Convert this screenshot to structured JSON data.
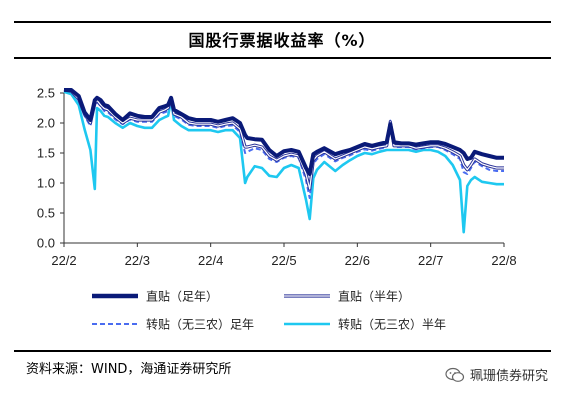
{
  "title": "国股行票据收益率（%）",
  "source": "资料来源：WIND，海通证券研究所",
  "watermark": {
    "text": "珮珊债券研究",
    "icon": "wechat-icon"
  },
  "chart_data": {
    "type": "line",
    "title": "国股行票据收益率（%）",
    "xlabel": "",
    "ylabel": "",
    "ylim": [
      0.0,
      2.5
    ],
    "yticks": [
      "0.0",
      "0.5",
      "1.0",
      "1.5",
      "2.0",
      "2.5"
    ],
    "xticks": [
      "22/2",
      "22/3",
      "22/4",
      "22/5",
      "22/6",
      "22/7",
      "22/8"
    ],
    "xtick_pos": [
      0,
      1,
      2,
      3,
      4,
      5,
      6
    ],
    "grid": false,
    "legend": "bottom",
    "x": [
      0.0,
      0.1,
      0.2,
      0.28,
      0.36,
      0.42,
      0.45,
      0.5,
      0.55,
      0.6,
      0.7,
      0.8,
      0.9,
      1.0,
      1.1,
      1.2,
      1.3,
      1.38,
      1.42,
      1.46,
      1.5,
      1.6,
      1.7,
      1.8,
      1.9,
      2.0,
      2.1,
      2.2,
      2.3,
      2.4,
      2.47,
      2.5,
      2.6,
      2.7,
      2.8,
      2.9,
      3.0,
      3.1,
      3.2,
      3.3,
      3.35,
      3.4,
      3.45,
      3.55,
      3.7,
      3.8,
      3.9,
      4.0,
      4.1,
      4.2,
      4.3,
      4.4,
      4.45,
      4.5,
      4.6,
      4.7,
      4.8,
      4.9,
      5.0,
      5.1,
      5.2,
      5.3,
      5.4,
      5.45,
      5.5,
      5.55,
      5.6,
      5.7,
      5.8,
      5.9,
      6.0
    ],
    "series": [
      {
        "name": "直贴（足年）",
        "color": "#0a1a78",
        "width": 4,
        "dash": "",
        "values": [
          2.55,
          2.55,
          2.45,
          2.18,
          2.05,
          2.38,
          2.42,
          2.38,
          2.3,
          2.28,
          2.15,
          2.05,
          2.16,
          2.12,
          2.1,
          2.1,
          2.25,
          2.28,
          2.3,
          2.42,
          2.22,
          2.15,
          2.08,
          2.05,
          2.05,
          2.05,
          2.02,
          2.05,
          2.08,
          2.0,
          1.8,
          1.75,
          1.73,
          1.72,
          1.55,
          1.45,
          1.53,
          1.55,
          1.52,
          1.25,
          1.15,
          1.48,
          1.52,
          1.58,
          1.48,
          1.52,
          1.55,
          1.6,
          1.65,
          1.62,
          1.65,
          1.68,
          1.98,
          1.68,
          1.66,
          1.66,
          1.64,
          1.66,
          1.68,
          1.68,
          1.65,
          1.6,
          1.55,
          1.5,
          1.4,
          1.42,
          1.52,
          1.48,
          1.45,
          1.42,
          1.42
        ]
      },
      {
        "name": "直贴（半年）",
        "color": "#2b3399",
        "width": 1.4,
        "dash": "",
        "double": true,
        "values": [
          2.55,
          2.53,
          2.4,
          2.15,
          2.0,
          2.32,
          2.38,
          2.3,
          2.24,
          2.22,
          2.1,
          2.0,
          2.08,
          2.05,
          2.05,
          2.05,
          2.18,
          2.22,
          2.25,
          2.4,
          2.15,
          2.1,
          2.0,
          1.98,
          1.98,
          1.98,
          1.95,
          1.98,
          2.0,
          1.9,
          1.6,
          1.6,
          1.63,
          1.6,
          1.45,
          1.38,
          1.45,
          1.48,
          1.45,
          1.15,
          0.9,
          1.38,
          1.45,
          1.52,
          1.4,
          1.45,
          1.5,
          1.55,
          1.6,
          1.57,
          1.6,
          1.62,
          2.02,
          1.62,
          1.62,
          1.62,
          1.58,
          1.6,
          1.62,
          1.62,
          1.58,
          1.52,
          1.45,
          1.3,
          1.22,
          1.3,
          1.4,
          1.32,
          1.28,
          1.25,
          1.25
        ]
      },
      {
        "name": "转贴（无三农）足年",
        "color": "#4a6cf0",
        "width": 2,
        "dash": "5,3",
        "values": [
          2.55,
          2.52,
          2.38,
          2.12,
          1.95,
          2.3,
          2.35,
          2.28,
          2.2,
          2.18,
          2.06,
          1.98,
          2.06,
          2.02,
          2.02,
          2.02,
          2.15,
          2.18,
          2.2,
          2.36,
          2.12,
          2.06,
          1.97,
          1.95,
          1.95,
          1.95,
          1.92,
          1.95,
          1.96,
          1.85,
          1.5,
          1.52,
          1.58,
          1.55,
          1.4,
          1.35,
          1.42,
          1.45,
          1.42,
          1.05,
          0.75,
          1.32,
          1.4,
          1.48,
          1.36,
          1.42,
          1.46,
          1.52,
          1.56,
          1.54,
          1.57,
          1.6,
          2.04,
          1.6,
          1.6,
          1.6,
          1.56,
          1.58,
          1.6,
          1.6,
          1.55,
          1.48,
          1.4,
          1.18,
          1.15,
          1.25,
          1.36,
          1.28,
          1.22,
          1.2,
          1.2
        ]
      },
      {
        "name": "转贴（无三农）半年",
        "color": "#1ec8f0",
        "width": 2.6,
        "dash": "",
        "values": [
          2.52,
          2.48,
          2.3,
          1.9,
          1.55,
          0.9,
          2.25,
          2.2,
          2.12,
          2.1,
          2.0,
          1.92,
          2.0,
          1.95,
          1.92,
          1.92,
          2.05,
          2.1,
          2.12,
          2.38,
          2.05,
          1.95,
          1.88,
          1.88,
          1.88,
          1.88,
          1.85,
          1.88,
          1.88,
          1.75,
          1.0,
          1.1,
          1.28,
          1.25,
          1.12,
          1.1,
          1.25,
          1.3,
          1.25,
          0.72,
          0.4,
          1.08,
          1.22,
          1.35,
          1.2,
          1.3,
          1.38,
          1.45,
          1.5,
          1.48,
          1.52,
          1.55,
          1.55,
          1.55,
          1.55,
          1.55,
          1.52,
          1.55,
          1.55,
          1.52,
          1.45,
          1.3,
          1.05,
          0.18,
          0.95,
          1.05,
          1.1,
          1.02,
          1.0,
          0.98,
          0.98
        ]
      }
    ]
  }
}
